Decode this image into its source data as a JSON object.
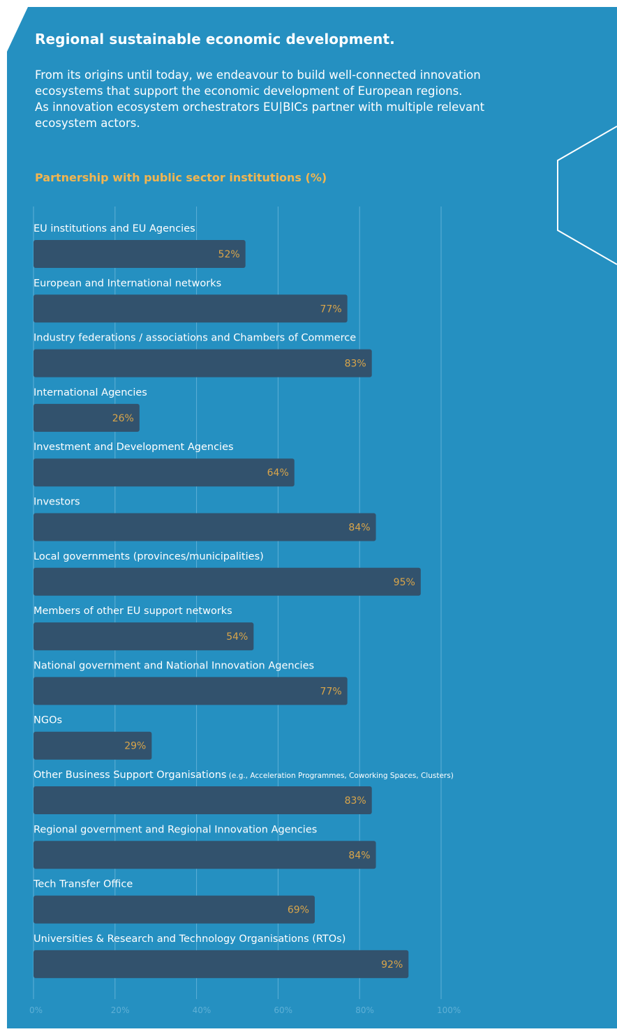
{
  "header": {
    "title": "Regional sustainable economic development.",
    "intro_line1": "From its origins until today, we endeavour to build well-connected innovation ecosystems that support the economic development of European regions.",
    "intro_line2": "As innovation ecosystem orchestrators EU|BICs partner with multiple relevant ecosystem actors."
  },
  "colors": {
    "panel": "#2590c1",
    "bar": "#32526d",
    "value_label": "#d9a54a",
    "subtitle": "#f2b550",
    "text": "#ffffff",
    "grid": "#5fb0d6"
  },
  "chart_data": {
    "type": "bar",
    "orientation": "horizontal",
    "title": "Partnership with public sector institutions (%)",
    "xlim": [
      0,
      100
    ],
    "x_ticks": [
      "0%",
      "20%",
      "40%",
      "60%",
      "80%",
      "100%"
    ],
    "grid": true,
    "categories": [
      "EU institutions and EU Agencies",
      "European and International networks",
      "Industry federations / associations and Chambers of Commerce",
      "International Agencies",
      "Investment and Development Agencies",
      "Investors",
      "Local governments (provinces/municipalities)",
      "Members of other EU support networks",
      "National government and National Innovation Agencies",
      "NGOs",
      "Other Business Support Organisations",
      "Regional government and Regional Innovation Agencies",
      "Tech Transfer Office",
      "Universities & Research and Technology Organisations (RTOs)"
    ],
    "category_notes": [
      "",
      "",
      "",
      "",
      "",
      "",
      "",
      "",
      "",
      "",
      "(e.g., Acceleration Programmes, Coworking Spaces, Clusters)",
      "",
      "",
      ""
    ],
    "values": [
      52,
      77,
      83,
      26,
      64,
      84,
      95,
      54,
      77,
      29,
      83,
      84,
      69,
      92
    ],
    "value_labels": [
      "52%",
      "77%",
      "83%",
      "26%",
      "64%",
      "84%",
      "95%",
      "54%",
      "77%",
      "29%",
      "83%",
      "84%",
      "69%",
      "92%"
    ]
  }
}
